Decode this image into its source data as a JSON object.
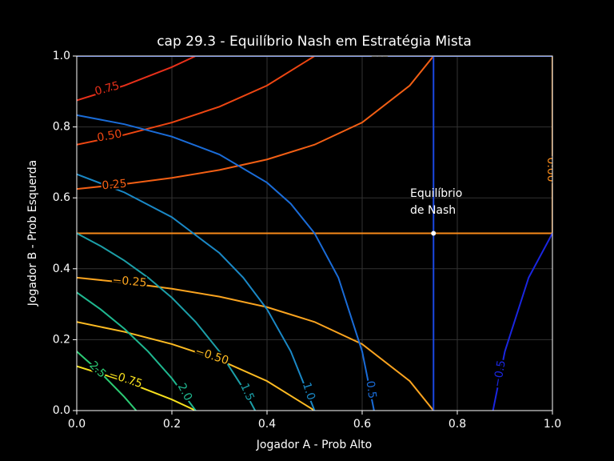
{
  "chart_data": {
    "type": "contour",
    "title": "cap 29.3 - Equilíbrio Nash em Estratégia Mista",
    "xlabel": "Jogador A - Prob Alto",
    "ylabel": "Jogador B - Prob Esquerda",
    "xlim": [
      0,
      1
    ],
    "ylim": [
      0,
      1
    ],
    "xticks": [
      {
        "value": 0,
        "label": "0.0"
      },
      {
        "value": 0.2,
        "label": "0.2"
      },
      {
        "value": 0.4,
        "label": "0.4"
      },
      {
        "value": 0.6,
        "label": "0.6"
      },
      {
        "value": 0.8,
        "label": "0.8"
      },
      {
        "value": 1,
        "label": "1.0"
      }
    ],
    "yticks": [
      {
        "value": 0,
        "label": "0.0"
      },
      {
        "value": 0.2,
        "label": "0.2"
      },
      {
        "value": 0.4,
        "label": "0.4"
      },
      {
        "value": 0.6,
        "label": "0.6"
      },
      {
        "value": 0.8,
        "label": "0.8"
      },
      {
        "value": 1,
        "label": "1.0"
      }
    ],
    "grid": true,
    "series": [
      {
        "label": "0.75",
        "color": "#e8301a",
        "x": [
          0,
          0.1,
          0.2,
          0.25
        ],
        "y": [
          0.875,
          0.9167,
          0.96875,
          1.0
        ]
      },
      {
        "label": "0.50",
        "color": "#ee4612",
        "x": [
          0,
          0.1,
          0.2,
          0.3,
          0.4,
          0.5
        ],
        "y": [
          0.75,
          0.7778,
          0.8125,
          0.8571,
          0.9167,
          1.0
        ]
      },
      {
        "label": "0.25",
        "color": "#f35f14",
        "x": [
          0,
          0.1,
          0.2,
          0.3,
          0.4,
          0.5,
          0.6,
          0.7,
          0.75
        ],
        "y": [
          0.625,
          0.6389,
          0.65625,
          0.6786,
          0.7083,
          0.75,
          0.8125,
          0.9167,
          1.0
        ]
      },
      {
        "label": "0.00",
        "color": "#f78a1a",
        "x": [
          0,
          1,
          null,
          1,
          1
        ],
        "y": [
          0.5,
          0.5,
          null,
          0.5,
          1
        ]
      },
      {
        "label": "−0.25",
        "color": "#fba41f",
        "x": [
          0,
          0.1,
          0.2,
          0.3,
          0.4,
          0.5,
          0.6,
          0.7,
          0.75
        ],
        "y": [
          0.375,
          0.3611,
          0.34375,
          0.3214,
          0.2917,
          0.25,
          0.1875,
          0.0833,
          0
        ]
      },
      {
        "label": "−0.50",
        "color": "#fdbb22",
        "x": [
          0,
          0.1,
          0.2,
          0.3,
          0.4,
          0.5
        ],
        "y": [
          0.25,
          0.2222,
          0.1875,
          0.1429,
          0.0833,
          0
        ]
      },
      {
        "label": "−0.75",
        "color": "#f7e01d",
        "x": [
          0,
          0.1,
          0.2,
          0.25
        ],
        "y": [
          0.125,
          0.0833,
          0.03125,
          0
        ]
      },
      {
        "label": "2.5",
        "color": "#2ccc74",
        "x": [
          0,
          0.05,
          0.1,
          0.125
        ],
        "y": [
          0.1667,
          0.1071,
          0.0385,
          0
        ]
      },
      {
        "label": "2.0",
        "color": "#1fb890",
        "x": [
          0,
          0.05,
          0.1,
          0.15,
          0.2,
          0.25
        ],
        "y": [
          0.3333,
          0.2857,
          0.2308,
          0.1667,
          0.0909,
          0
        ]
      },
      {
        "label": "1.5",
        "color": "#1c9fa8",
        "x": [
          0,
          0.05,
          0.1,
          0.15,
          0.2,
          0.25,
          0.3,
          0.35,
          0.375
        ],
        "y": [
          0.5,
          0.4643,
          0.4231,
          0.375,
          0.3182,
          0.25,
          0.1667,
          0.0625,
          0
        ]
      },
      {
        "label": "1.0",
        "color": "#1a88c6",
        "x": [
          0,
          0.1,
          0.2,
          0.3,
          0.35,
          0.4,
          0.45,
          0.5
        ],
        "y": [
          0.6667,
          0.6154,
          0.5455,
          0.4444,
          0.375,
          0.2857,
          0.1667,
          0
        ]
      },
      {
        "label": "0.5",
        "color": "#1a6cd8",
        "x": [
          0,
          0.1,
          0.2,
          0.3,
          0.4,
          0.45,
          0.5,
          0.55,
          0.6,
          0.625
        ],
        "y": [
          0.8333,
          0.8077,
          0.7727,
          0.7222,
          0.6429,
          0.5833,
          0.5,
          0.375,
          0.1667,
          0
        ]
      },
      {
        "label": "0.0",
        "color": "#1a48e2",
        "x": [
          0,
          1,
          null,
          0.75,
          0.75
        ],
        "y": [
          1,
          1,
          null,
          0,
          1
        ]
      },
      {
        "label": "−0.5",
        "color": "#1a26e0",
        "x": [
          0.875,
          0.9,
          0.95,
          1
        ],
        "y": [
          0,
          0.1667,
          0.375,
          0.5
        ]
      }
    ],
    "equilibrium": {
      "x": 0.75,
      "y": 0.5
    },
    "annotation": [
      "Equilíbrio",
      "de Nash"
    ]
  }
}
